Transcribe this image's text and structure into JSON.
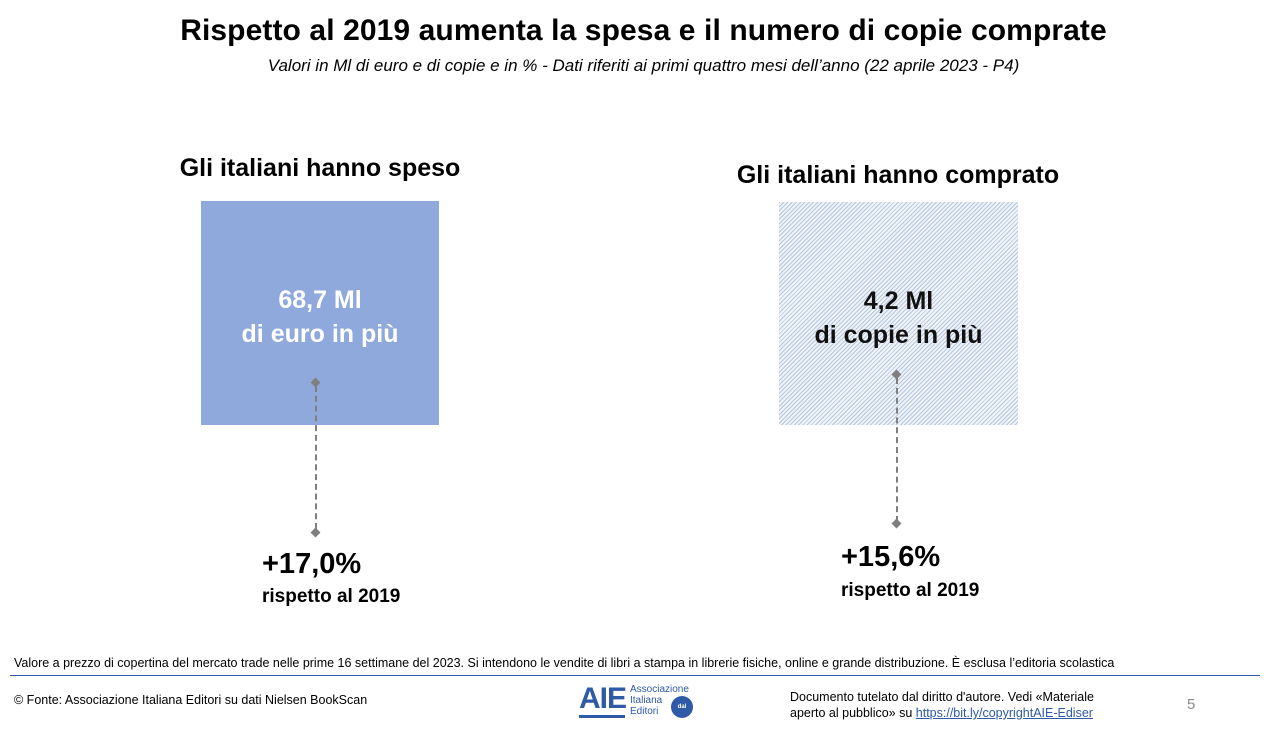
{
  "slide": {
    "title": "Rispetto al 2019 aumenta la spesa e il numero di copie comprate",
    "subtitle": "Valori in Ml di euro e di copie e in % - Dati riferiti ai primi quattro mesi dell’anno (22 aprile 2023  - P4)"
  },
  "panels": [
    {
      "heading": "Gli italiani hanno speso",
      "value_line1": "68,7 Ml",
      "value_line2": "di euro in più",
      "change": "+17,0%",
      "comparison": "rispetto al 2019",
      "box_color": "#8fa9dc"
    },
    {
      "heading": "Gli italiani hanno comprato",
      "value_line1": "4,2 Ml",
      "value_line2": "di copie in più",
      "change": "+15,6%",
      "comparison": "rispetto al 2019",
      "box_color": "#dbe5f1"
    }
  ],
  "footer": {
    "note": "Valore a prezzo di copertina del mercato trade nelle prime 16 settimane del 2023. Si intendono le vendite di libri a stampa in librerie fisiche, online e grande distribuzione. È esclusa l’editoria scolastica",
    "source": "© Fonte: Associazione Italiana Editori su dati Nielsen BookScan",
    "logo_text": "AIE",
    "logo_sub1": "Associazione",
    "logo_sub2": "Italiana",
    "logo_sub3": "Editori",
    "logo_badge": "dal 1869",
    "copyright_line1": "Documento tutelato dal diritto d'autore. Vedi «Materiale",
    "copyright_line2_prefix": "aperto al pubblico» su ",
    "copyright_link": "https://bit.ly/copyrightAIE-Ediser",
    "page_number": "5"
  },
  "colors": {
    "accent_blue": "#2e5aa7",
    "connector_gray": "#7f7f7f"
  }
}
